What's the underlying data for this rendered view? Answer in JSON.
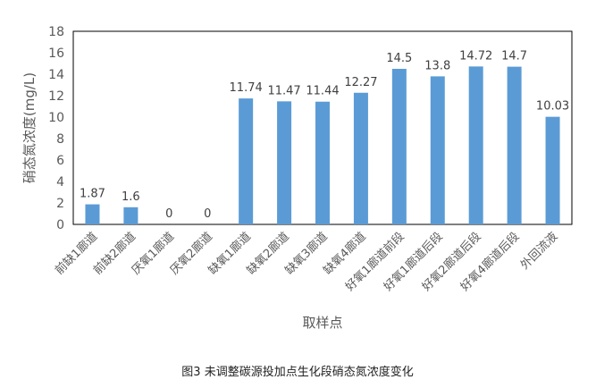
{
  "chart_data": {
    "type": "bar",
    "caption": "图3 未调整碳源投加点生化段硝态氮浓度变化",
    "xlabel": "取样点",
    "ylabel": "硝态氮浓度(mg/L)",
    "ylim": [
      0,
      18
    ],
    "yticks": [
      0,
      2,
      4,
      6,
      8,
      10,
      12,
      14,
      16,
      18
    ],
    "ytick_labels": [
      "0",
      "2",
      "4",
      "6",
      "8",
      "10",
      "12",
      "14",
      "16",
      "18"
    ],
    "categories": [
      "前缺1廊道",
      "前缺2廊道",
      "厌氧1廊道",
      "厌氧2廊道",
      "缺氧1廊道",
      "缺氧2廊道",
      "缺氧3廊道",
      "缺氧4廊道",
      "好氧1廊道前段",
      "好氧1廊道后段",
      "好氧2廊道后段",
      "好氧4廊道后段",
      "外回流液"
    ],
    "values": [
      1.87,
      1.6,
      0,
      0,
      11.74,
      11.47,
      11.44,
      12.27,
      14.5,
      13.8,
      14.72,
      14.7,
      10.03
    ],
    "value_labels": [
      "1.87",
      "1.6",
      "0",
      "0",
      "11.74",
      "11.47",
      "11.44",
      "12.27",
      "14.5",
      "13.8",
      "14.72",
      "14.7",
      "10.03"
    ],
    "bar_color": "#5B9BD5",
    "grid": false,
    "legend": "none"
  }
}
